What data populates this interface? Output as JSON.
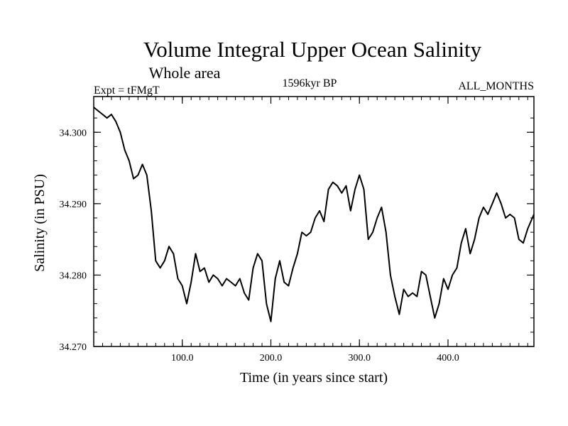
{
  "chart_data": {
    "type": "line",
    "title": "Volume Integral Upper Ocean Salinity",
    "subtitle": "Whole area",
    "left_label": "Expt = tFMgT",
    "center_label": "1596kyr BP",
    "right_label": "ALL_MONTHS",
    "xlabel": "Time (in years since start)",
    "ylabel": "Salinity (in PSU)",
    "xlim": [
      0,
      497
    ],
    "ylim": [
      34.27,
      34.305
    ],
    "xticks": [
      100,
      200,
      300,
      400
    ],
    "xtick_labels": [
      "100.0",
      "200.0",
      "300.0",
      "400.0"
    ],
    "yticks": [
      34.27,
      34.28,
      34.29,
      34.3
    ],
    "ytick_labels": [
      "34.270",
      "34.280",
      "34.290",
      "34.300"
    ],
    "x_minor_step": 10,
    "y_minor_step": 0.002,
    "grid": false,
    "series": [
      {
        "name": "salinity",
        "x": [
          0,
          5,
          10,
          15,
          20,
          25,
          30,
          35,
          40,
          45,
          50,
          55,
          60,
          65,
          70,
          75,
          80,
          85,
          90,
          95,
          100,
          105,
          110,
          115,
          120,
          125,
          130,
          135,
          140,
          145,
          150,
          155,
          160,
          165,
          170,
          175,
          180,
          185,
          190,
          195,
          200,
          205,
          210,
          215,
          220,
          225,
          230,
          235,
          240,
          245,
          250,
          255,
          260,
          265,
          270,
          275,
          280,
          285,
          290,
          295,
          300,
          305,
          310,
          315,
          320,
          325,
          330,
          335,
          340,
          345,
          350,
          355,
          360,
          365,
          370,
          375,
          380,
          385,
          390,
          395,
          400,
          405,
          410,
          415,
          420,
          425,
          430,
          435,
          440,
          445,
          450,
          455,
          460,
          465,
          470,
          475,
          480,
          485,
          490,
          497
        ],
        "values": [
          34.3035,
          34.303,
          34.3025,
          34.302,
          34.3025,
          34.3015,
          34.3,
          34.2975,
          34.296,
          34.2935,
          34.294,
          34.2955,
          34.294,
          34.289,
          34.282,
          34.281,
          34.282,
          34.284,
          34.283,
          34.2795,
          34.2785,
          34.276,
          34.279,
          34.283,
          34.2805,
          34.281,
          34.279,
          34.28,
          34.2795,
          34.2785,
          34.2795,
          34.279,
          34.2785,
          34.2795,
          34.2775,
          34.2765,
          34.281,
          34.283,
          34.282,
          34.276,
          34.2735,
          34.2795,
          34.282,
          34.279,
          34.2785,
          34.281,
          34.283,
          34.286,
          34.2855,
          34.286,
          34.288,
          34.289,
          34.2875,
          34.292,
          34.293,
          34.2925,
          34.2915,
          34.2925,
          34.289,
          34.292,
          34.294,
          34.292,
          34.285,
          34.286,
          34.288,
          34.2895,
          34.286,
          34.28,
          34.277,
          34.2745,
          34.278,
          34.277,
          34.2775,
          34.277,
          34.2805,
          34.28,
          34.277,
          34.274,
          34.276,
          34.2795,
          34.278,
          34.28,
          34.281,
          34.2845,
          34.2865,
          34.283,
          34.285,
          34.288,
          34.2895,
          34.2885,
          34.29,
          34.2915,
          34.29,
          34.288,
          34.2885,
          34.288,
          34.285,
          34.2845,
          34.2865,
          34.2885
        ]
      }
    ]
  }
}
